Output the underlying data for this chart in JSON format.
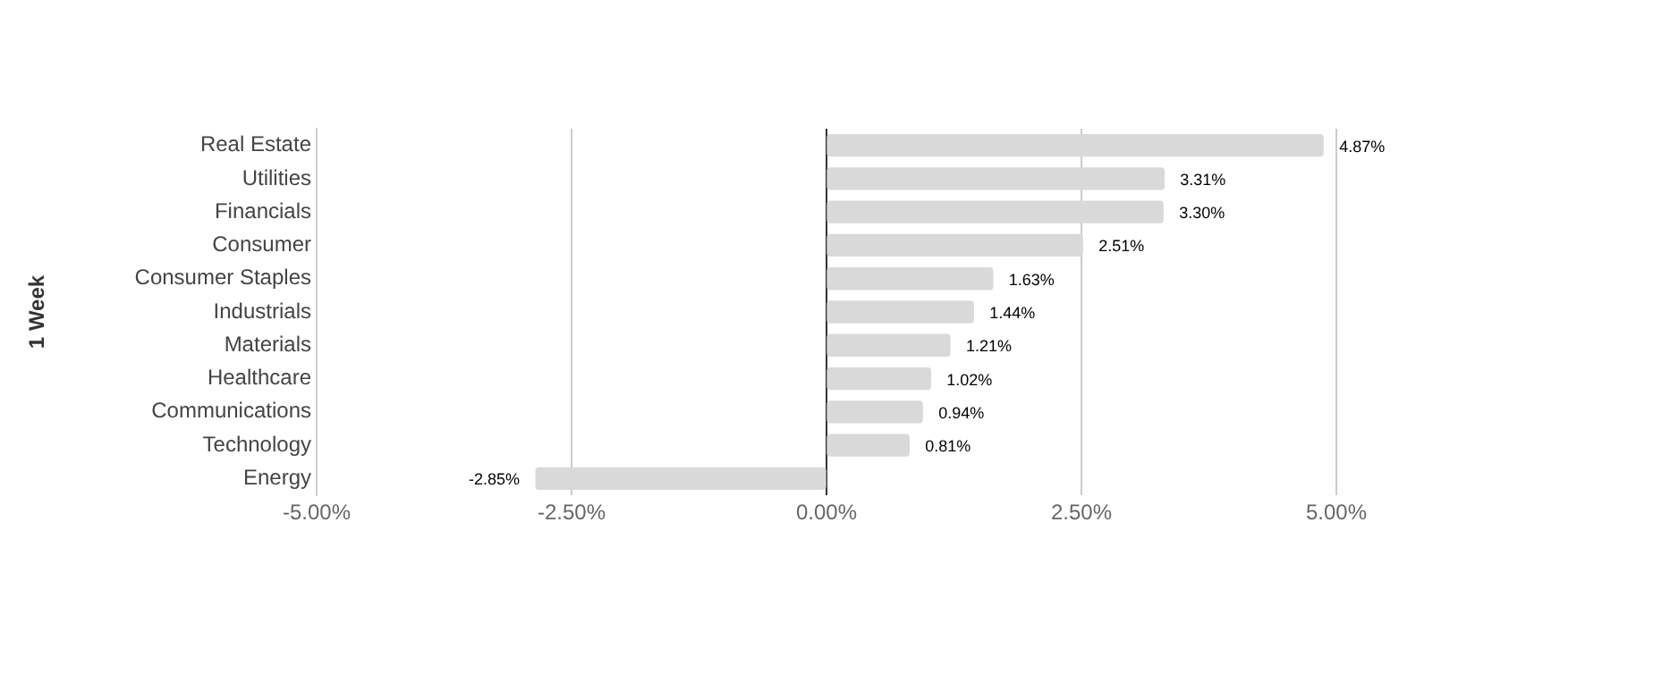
{
  "chart_data": {
    "type": "bar",
    "orientation": "horizontal",
    "ylabel": "1 Week",
    "categories": [
      "Real Estate",
      "Utilities",
      "Financials",
      "Consumer",
      "Consumer Staples",
      "Industrials",
      "Materials",
      "Healthcare",
      "Communications",
      "Technology",
      "Energy"
    ],
    "values": [
      4.87,
      3.31,
      3.3,
      2.51,
      1.63,
      1.44,
      1.21,
      1.02,
      0.94,
      0.81,
      -2.85
    ],
    "value_labels": [
      "4.87%",
      "3.31%",
      "3.30%",
      "2.51%",
      "1.63%",
      "1.44%",
      "1.21%",
      "1.02%",
      "0.94%",
      "0.81%",
      "-2.85%"
    ],
    "color": "#d9d9d9",
    "xlim": [
      -5,
      5
    ],
    "xticks": [
      {
        "value": -5,
        "label": "-5.00%"
      },
      {
        "value": -2.5,
        "label": "-2.50%"
      },
      {
        "value": 0,
        "label": "0.00%"
      },
      {
        "value": 2.5,
        "label": "2.50%"
      },
      {
        "value": 5,
        "label": "5.00%"
      }
    ],
    "grid": "x",
    "legend": false
  }
}
